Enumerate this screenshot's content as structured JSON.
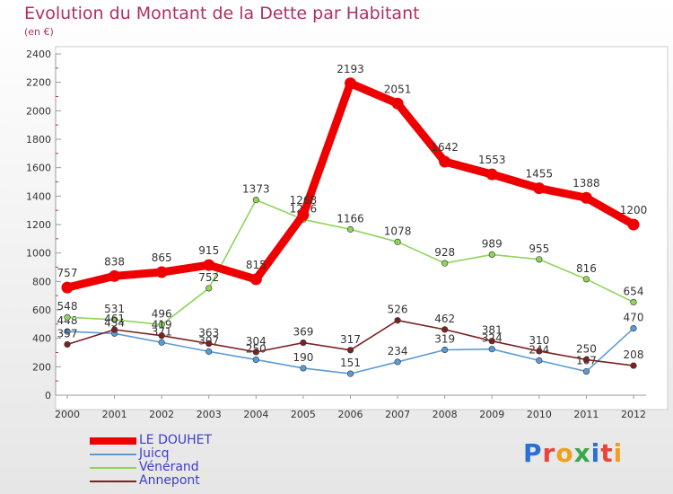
{
  "chart_data": {
    "type": "line",
    "title": "Evolution du Montant de la Dette par Habitant",
    "subtitle": "(en €)",
    "x": [
      "2000",
      "2001",
      "2002",
      "2003",
      "2004",
      "2005",
      "2006",
      "2007",
      "2008",
      "2009",
      "2010",
      "2011",
      "2012"
    ],
    "ylim": [
      0,
      2400
    ],
    "yticks": [
      0,
      200,
      400,
      600,
      800,
      1000,
      1200,
      1400,
      1600,
      1800,
      2000,
      2200,
      2400
    ],
    "grid": false,
    "legend": "bottom-left",
    "series": [
      {
        "name": "Juicq",
        "color": "#5b9bd5",
        "values": [
          448,
          434,
          371,
          307,
          250,
          190,
          151,
          234,
          319,
          324,
          244,
          167,
          470
        ],
        "labels": [
          "448",
          "434",
          "371",
          "307",
          "250",
          "190",
          "151",
          "234",
          "319",
          "324",
          "244",
          "167",
          "470"
        ]
      },
      {
        "name": "Vénérand",
        "color": "#8fd45a",
        "values": [
          548,
          531,
          496,
          752,
          1373,
          1236,
          1166,
          1078,
          928,
          989,
          955,
          816,
          654
        ],
        "labels": [
          "548",
          "531",
          "496",
          "752",
          "1373",
          "1236",
          "1166",
          "1078",
          "928",
          "989",
          "955",
          "816",
          "654"
        ]
      },
      {
        "name": "Annepont",
        "color": "#7a2222",
        "values": [
          357,
          461,
          419,
          363,
          304,
          369,
          317,
          526,
          462,
          381,
          310,
          250,
          208
        ],
        "labels": [
          "357",
          "461",
          "419",
          "363",
          "304",
          "369",
          "317",
          "526",
          "462",
          "381",
          "310",
          "250",
          "208"
        ]
      },
      {
        "name": "LE DOUHET",
        "color": "#ee0000",
        "values": [
          757,
          838,
          865,
          915,
          815,
          1268,
          2193,
          2051,
          1642,
          1553,
          1455,
          1388,
          1200
        ],
        "labels": [
          "757",
          "838",
          "865",
          "915",
          "815",
          "1268",
          "2193",
          "2051",
          "1642",
          "1553",
          "1455",
          "1388",
          "1200"
        ]
      }
    ],
    "legend_order": [
      "LE DOUHET",
      "Juicq",
      "Vénérand",
      "Annepont"
    ]
  },
  "logo": {
    "letters": [
      "P",
      "r",
      "o",
      "x",
      "i",
      "t",
      "i"
    ],
    "colors": [
      "#2b6fd6",
      "#e8463c",
      "#f0a020",
      "#3aa84a",
      "#2b6fd6",
      "#e8463c",
      "#f0a020"
    ]
  }
}
